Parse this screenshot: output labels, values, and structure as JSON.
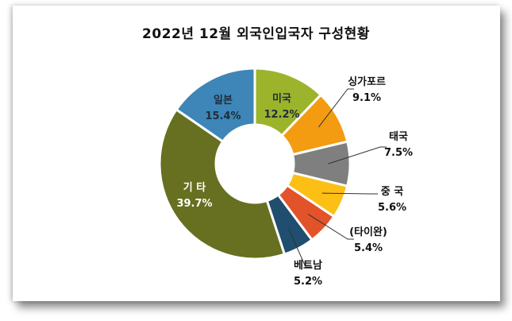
{
  "chart_data": {
    "type": "pie",
    "variant": "donut",
    "title": "2022년 12월 외국인입국자 구성현황",
    "start_angle_deg": 0,
    "direction": "clockwise",
    "legend": "none",
    "slices": [
      {
        "label": "미국",
        "value": 12.2,
        "value_label": "12.2%",
        "color": "#9bb42c",
        "label_pos": "inside",
        "text_color": "#1f2d3d"
      },
      {
        "label": "싱가포르",
        "value": 9.1,
        "value_label": "9.1%",
        "color": "#f39c12",
        "label_pos": "outside",
        "text_color": "#111111"
      },
      {
        "label": "태국",
        "value": 7.5,
        "value_label": "7.5%",
        "color": "#7f7f7f",
        "label_pos": "outside",
        "text_color": "#111111"
      },
      {
        "label": "중 국",
        "value": 5.6,
        "value_label": "5.6%",
        "color": "#fbbf16",
        "label_pos": "outside",
        "text_color": "#111111"
      },
      {
        "label": "(타이완)",
        "value": 5.4,
        "value_label": "5.4%",
        "color": "#e2532a",
        "label_pos": "outside",
        "text_color": "#111111"
      },
      {
        "label": "베트남",
        "value": 5.2,
        "value_label": "5.2%",
        "color": "#1f4e6e",
        "label_pos": "outside",
        "text_color": "#111111"
      },
      {
        "label": "기 타",
        "value": 39.7,
        "value_label": "39.7%",
        "color": "#667020",
        "label_pos": "inside",
        "text_color": "#ffffff"
      },
      {
        "label": "일본",
        "value": 15.4,
        "value_label": "15.4%",
        "color": "#3d86b7",
        "label_pos": "inside",
        "text_color": "#1f2d3d"
      }
    ]
  },
  "labels": {
    "title": "2022년 12월 외국인입국자 구성현황"
  }
}
